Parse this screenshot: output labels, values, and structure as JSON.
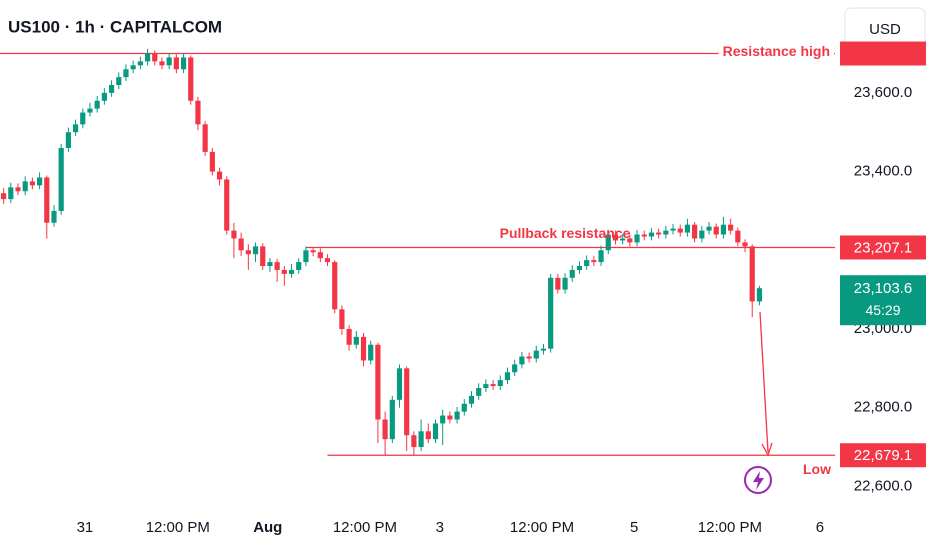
{
  "chart_data": {
    "type": "candlestick",
    "title": "US100 · 1h · CAPITALCOM",
    "currency": "USD",
    "up_color": "#089981",
    "down_color": "#f23645",
    "open": [
      23345,
      23330,
      23360,
      23350,
      23375,
      23365,
      23385,
      23270,
      23300,
      23460,
      23500,
      23520,
      23550,
      23560,
      23580,
      23600,
      23620,
      23640,
      23660,
      23670,
      23680,
      23700,
      23680,
      23670,
      23690,
      23660,
      23690,
      23580,
      23520,
      23450,
      23400,
      23380,
      23250,
      23230,
      23200,
      23190,
      23210,
      23160,
      23170,
      23150,
      23140,
      23150,
      23170,
      23200,
      23195,
      23180,
      23170,
      23050,
      23000,
      22960,
      22980,
      22920,
      22960,
      22770,
      22720,
      22820,
      22900,
      22730,
      22700,
      22740,
      22720,
      22760,
      22780,
      22770,
      22790,
      22810,
      22830,
      22850,
      22860,
      22855,
      22870,
      22890,
      22910,
      22930,
      22925,
      22945,
      22950,
      23130,
      23100,
      23130,
      23150,
      23160,
      23175,
      23170,
      23200,
      23240,
      23225,
      23230,
      23220,
      23240,
      23235,
      23245,
      23240,
      23250,
      23255,
      23245,
      23265,
      23230,
      23250,
      23260,
      23240,
      23265,
      23250,
      23220,
      23210,
      23070
    ],
    "high": [
      23358,
      23372,
      23370,
      23388,
      23385,
      23398,
      23390,
      23315,
      23470,
      23512,
      23532,
      23560,
      23575,
      23592,
      23612,
      23632,
      23652,
      23672,
      23682,
      23692,
      23712,
      23708,
      23690,
      23700,
      23698,
      23700,
      23695,
      23590,
      23528,
      23460,
      23410,
      23388,
      23270,
      23245,
      23215,
      23220,
      23218,
      23180,
      23178,
      23160,
      23165,
      23180,
      23210,
      23208,
      23205,
      23190,
      23175,
      23060,
      23010,
      22995,
      22990,
      22970,
      22965,
      22790,
      22830,
      22910,
      22905,
      22740,
      22770,
      22760,
      22770,
      22795,
      22790,
      22802,
      22822,
      22842,
      22862,
      22872,
      22870,
      22882,
      22902,
      22922,
      22942,
      22940,
      22957,
      22962,
      23140,
      23140,
      23142,
      23162,
      23172,
      23187,
      23185,
      23212,
      23252,
      23250,
      23242,
      23240,
      23252,
      23250,
      23257,
      23255,
      23262,
      23267,
      23265,
      23280,
      23272,
      23262,
      23272,
      23268,
      23285,
      23280,
      23258,
      23228,
      23215,
      23110
    ],
    "low": [
      23318,
      23320,
      23340,
      23340,
      23355,
      23355,
      23230,
      23260,
      23290,
      23450,
      23490,
      23510,
      23540,
      23550,
      23570,
      23590,
      23610,
      23630,
      23650,
      23660,
      23670,
      23670,
      23660,
      23660,
      23650,
      23650,
      23570,
      23505,
      23440,
      23390,
      23365,
      23240,
      23180,
      23185,
      23150,
      23170,
      23150,
      23145,
      23120,
      23110,
      23130,
      23140,
      23160,
      23185,
      23170,
      23160,
      23040,
      22985,
      22945,
      22950,
      22905,
      22910,
      22710,
      22679,
      22710,
      22800,
      22690,
      22679,
      22690,
      22710,
      22710,
      22705,
      22760,
      22760,
      22780,
      22800,
      22820,
      22840,
      22845,
      22845,
      22860,
      22880,
      22900,
      22915,
      22915,
      22935,
      22940,
      23090,
      23090,
      23120,
      23140,
      23150,
      23160,
      23160,
      23190,
      23215,
      23215,
      23210,
      23210,
      23225,
      23225,
      23230,
      23230,
      23240,
      23235,
      23235,
      23220,
      23220,
      23240,
      23230,
      23230,
      23240,
      23210,
      23195,
      23030,
      23060
    ],
    "close": [
      23330,
      23360,
      23350,
      23375,
      23365,
      23385,
      23270,
      23300,
      23460,
      23500,
      23520,
      23550,
      23560,
      23580,
      23600,
      23620,
      23640,
      23660,
      23670,
      23680,
      23700,
      23680,
      23670,
      23690,
      23660,
      23690,
      23580,
      23520,
      23450,
      23400,
      23380,
      23250,
      23230,
      23200,
      23190,
      23210,
      23160,
      23170,
      23150,
      23140,
      23150,
      23170,
      23200,
      23195,
      23180,
      23170,
      23050,
      23000,
      22960,
      22980,
      22920,
      22960,
      22770,
      22720,
      22820,
      22900,
      22730,
      22700,
      22740,
      22720,
      22760,
      22780,
      22770,
      22790,
      22810,
      22830,
      22850,
      22860,
      22855,
      22870,
      22890,
      22910,
      22930,
      22925,
      22945,
      22950,
      23130,
      23100,
      23130,
      23150,
      23160,
      23175,
      23170,
      23200,
      23240,
      23225,
      23230,
      23220,
      23240,
      23235,
      23245,
      23240,
      23250,
      23255,
      23245,
      23265,
      23230,
      23250,
      23260,
      23240,
      23265,
      23250,
      23220,
      23210,
      23070,
      23103.6
    ],
    "xlim": [
      -0.5,
      115.5
    ],
    "xticks": [
      {
        "value": 11.3,
        "label": "31"
      },
      {
        "value": 24.2,
        "label": "12:00 PM"
      },
      {
        "value": 36.7,
        "label": "Aug",
        "bold": true
      },
      {
        "value": 50.2,
        "label": "12:00 PM"
      },
      {
        "value": 60.6,
        "label": "3"
      },
      {
        "value": 74.8,
        "label": "12:00 PM"
      },
      {
        "value": 87.6,
        "label": "5"
      },
      {
        "value": 100.9,
        "label": "12:00 PM"
      },
      {
        "value": 113.4,
        "label": "6"
      }
    ],
    "ylim": [
      22540,
      23836
    ],
    "yticks": [
      {
        "value": 23600,
        "label": "23,600.0"
      },
      {
        "value": 23400,
        "label": "23,400.0"
      },
      {
        "value": 23000,
        "label": "23,000.0"
      },
      {
        "value": 22800,
        "label": "22,800.0"
      },
      {
        "value": 22600,
        "label": "22,600.0"
      }
    ],
    "levels": [
      {
        "name": "Resistance high",
        "value": 23700
      },
      {
        "name": "Pullback resistance",
        "value": 23207.1,
        "label": "23,207.1",
        "from": 42
      },
      {
        "name": "Low",
        "value": 22679.1,
        "label": "22,679.1",
        "from": 45
      }
    ],
    "last_price": {
      "value": 23103.6,
      "label": "23,103.6",
      "countdown": "45:29"
    }
  }
}
